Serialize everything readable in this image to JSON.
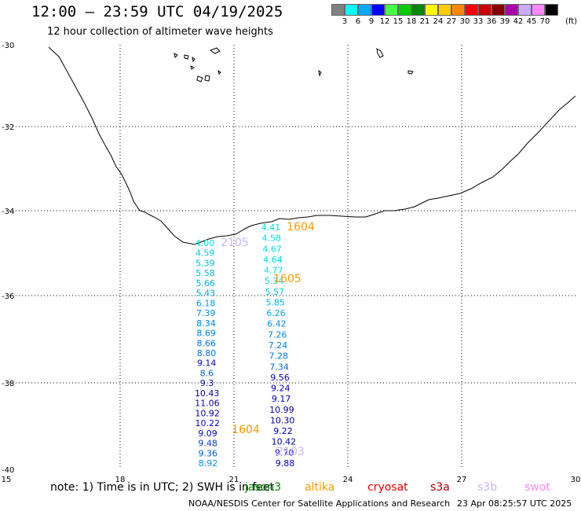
{
  "header": {
    "title": "12:00 – 23:59 UTC 04/19/2025",
    "subtitle": "12 hour collection of altimeter wave heights"
  },
  "legend": {
    "colors": [
      "#808080",
      "#00ffff",
      "#00aaff",
      "#0000ff",
      "#44ff44",
      "#00cc00",
      "#008800",
      "#ffff00",
      "#ffcc00",
      "#ff8800",
      "#ff0000",
      "#cc0000",
      "#880000",
      "#aa00aa",
      "#ccaaff",
      "#ff88ff",
      "#000000"
    ],
    "labels": [
      "3",
      "6",
      "9",
      "12",
      "15",
      "18",
      "21",
      "24",
      "27",
      "30",
      "33",
      "36",
      "39",
      "42",
      "45",
      "70"
    ],
    "unit": "(ft)"
  },
  "axes": {
    "x_ticks": [
      "15",
      "18",
      "21",
      "24",
      "27",
      "30"
    ],
    "y_ticks": [
      "-30",
      "-32",
      "-34",
      "-36",
      "-38",
      "-40"
    ]
  },
  "passes": [
    {
      "time": "1604",
      "color": "#ff9900"
    },
    {
      "time": "2105",
      "color": "#c8b4ff"
    },
    {
      "time": "1605",
      "color": "#ff9900"
    },
    {
      "time": "1604",
      "color": "#ff9900"
    },
    {
      "time": "2103",
      "color": "#c8b4ff"
    }
  ],
  "track_west": {
    "values": [
      "4.00",
      "4.59",
      "5.39",
      "5.58",
      "5.66",
      "5.43",
      "6.18",
      "7.39",
      "8.34",
      "8.69",
      "8.66",
      "8.80",
      "9.14",
      "8.6",
      "9.3",
      "10.43",
      "11.06",
      "10.92",
      "10.22",
      "9.09",
      "9.48",
      "9.36",
      "8.92"
    ],
    "colors": [
      "#00e0e0",
      "#00d0e0",
      "#00c0e0",
      "#00b8e0",
      "#00b0e0",
      "#00a8e0",
      "#009ce0",
      "#0090e0",
      "#0088e0",
      "#0080e0",
      "#0078e0",
      "#0070e0",
      "#0000cc",
      "#0060dd",
      "#0000bb",
      "#0000aa",
      "#0000aa",
      "#0000aa",
      "#0000cc",
      "#0000dd",
      "#0040dd",
      "#0060dd",
      "#0090e0"
    ]
  },
  "track_east": {
    "values": [
      "4.41",
      "4.58",
      "4.67",
      "4.64",
      "4.77",
      "5.34",
      "5.57",
      "5.85",
      "6.26",
      "6.42",
      "7.26",
      "7.24",
      "7.28",
      "7.34",
      "9.56",
      "9.24",
      "9.17",
      "10.99",
      "10.30",
      "9.22",
      "10.42",
      "9.70",
      "9.88"
    ],
    "colors": [
      "#00e0e0",
      "#00e0e0",
      "#00e0e0",
      "#00e0e0",
      "#00e0e0",
      "#00d8e0",
      "#00c8e0",
      "#00b8e0",
      "#00a8e0",
      "#0098e0",
      "#0088e0",
      "#0080e0",
      "#0078e0",
      "#0068e0",
      "#0000cc",
      "#0000bb",
      "#0000bb",
      "#0000aa",
      "#0000aa",
      "#0000bb",
      "#0000bb",
      "#0000cc",
      "#0000cc"
    ]
  },
  "footer": {
    "note": "note:  1) Time is in UTC;  2) SWH is in feet",
    "satellites": [
      {
        "name": "jason3",
        "color": "#008800"
      },
      {
        "name": "altika",
        "color": "#ff9900"
      },
      {
        "name": "cryosat",
        "color": "#ee0000"
      },
      {
        "name": "s3a",
        "color": "#aa0000"
      },
      {
        "name": "s3b",
        "color": "#c8b4ff"
      },
      {
        "name": "swot",
        "color": "#ff88ff"
      }
    ],
    "credit": "NOAA/NESDIS Center for Satellite Applications and Research",
    "timestamp": "23 Apr 08:25:57 UTC 2025"
  }
}
